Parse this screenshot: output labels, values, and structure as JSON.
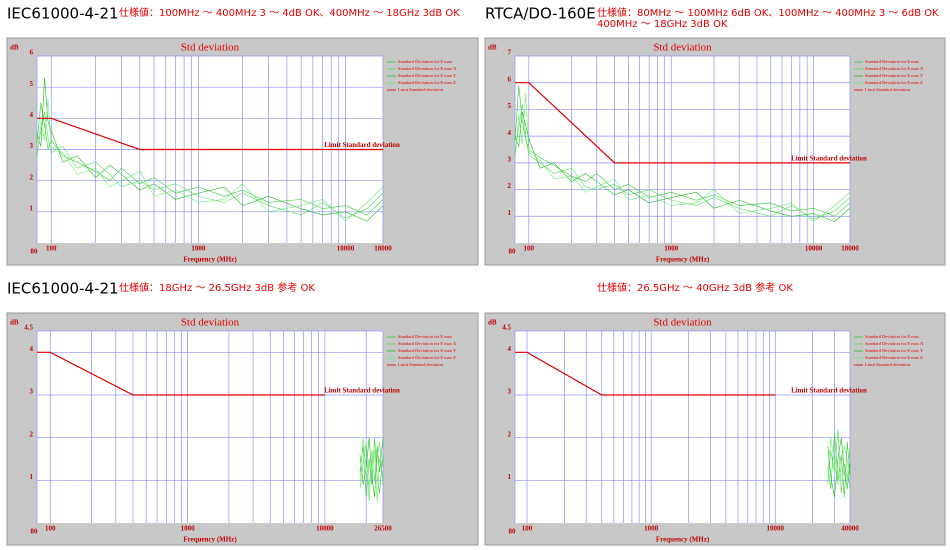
{
  "chart_data": [
    {
      "type": "line",
      "heading": "IEC61000-4-21",
      "spec": [
        "仕様値：100MHz ～ 400MHz 3 ～ 4dB OK、400MHz ～ 18GHz 3dB OK"
      ],
      "title": "Std deviation",
      "x_label": "Frequency (MHz)",
      "y_label": "dB",
      "annotation": "Limit Standard deviation",
      "xscale": "log",
      "xlim": [
        80,
        18000
      ],
      "xticks": [
        80,
        100,
        1000,
        10000,
        18000
      ],
      "xgrid": [
        200,
        300,
        400,
        500,
        600,
        700,
        800,
        900,
        2000,
        3000,
        4000,
        5000,
        6000,
        7000,
        8000,
        9000
      ],
      "ylim": [
        0,
        6
      ],
      "yticks": [
        1,
        2,
        3,
        4,
        5,
        6
      ],
      "grid": true,
      "x": [
        80,
        85,
        90,
        95,
        100,
        120,
        150,
        200,
        250,
        300,
        400,
        500,
        700,
        1000,
        1500,
        2000,
        3000,
        5000,
        7000,
        10000,
        14000,
        18000
      ],
      "series": [
        {
          "name": "Standard Deviation for E max",
          "color": "#33cc33",
          "values": [
            3.2,
            4.5,
            3.8,
            3.0,
            3.3,
            2.8,
            2.6,
            2.3,
            2.0,
            2.4,
            1.9,
            2.1,
            1.6,
            1.8,
            1.5,
            1.7,
            1.3,
            1.4,
            1.1,
            1.2,
            0.9,
            1.4
          ]
        },
        {
          "name": "Standard Deviation for E max X",
          "color": "#55dd55",
          "values": [
            2.9,
            3.6,
            4.2,
            3.4,
            2.9,
            3.1,
            2.4,
            2.6,
            2.2,
            1.8,
            2.0,
            1.7,
            1.9,
            1.5,
            1.3,
            1.6,
            1.2,
            0.9,
            1.3,
            0.8,
            1.1,
            1.6
          ]
        },
        {
          "name": "Standard Deviation for E max Y",
          "color": "#22bb22",
          "values": [
            3.5,
            3.1,
            5.3,
            3.9,
            3.6,
            2.6,
            2.8,
            2.1,
            2.5,
            2.2,
            1.7,
            1.9,
            1.4,
            1.6,
            1.8,
            1.2,
            1.5,
            1.1,
            0.9,
            1.0,
            0.7,
            1.2
          ]
        },
        {
          "name": "Standard Deviation for E max Z",
          "color": "#66ee66",
          "values": [
            2.7,
            3.9,
            3.3,
            4.6,
            3.1,
            2.9,
            2.2,
            2.4,
            1.8,
            2.0,
            2.3,
            1.5,
            1.7,
            1.3,
            1.4,
            1.9,
            1.0,
            1.2,
            1.4,
            0.7,
            1.3,
            1.8
          ]
        },
        {
          "name": "Limit Standard deviation",
          "color": "#e00000",
          "x": [
            80,
            100,
            400,
            18000
          ],
          "values": [
            4,
            4,
            3,
            3
          ]
        }
      ]
    },
    {
      "type": "line",
      "heading": "RTCA/DO-160E",
      "spec": [
        "仕様値：80MHz ～ 100MHz 6dB OK、100MHz ～ 400MHz 3 ～ 6dB OK",
        "400MHz ～ 18GHz 3dB OK"
      ],
      "title": "Std deviation",
      "x_label": "Frequency (MHz)",
      "y_label": "dB",
      "annotation": "Limit Standard deviation",
      "xscale": "log",
      "xlim": [
        80,
        18000
      ],
      "xticks": [
        80,
        100,
        1000,
        10000,
        18000
      ],
      "xgrid": [
        200,
        300,
        400,
        500,
        600,
        700,
        800,
        900,
        2000,
        3000,
        4000,
        5000,
        6000,
        7000,
        8000,
        9000
      ],
      "ylim": [
        0,
        7
      ],
      "yticks": [
        1,
        2,
        3,
        4,
        5,
        6,
        7
      ],
      "grid": true,
      "x": [
        80,
        85,
        90,
        95,
        100,
        120,
        150,
        200,
        250,
        300,
        400,
        500,
        700,
        1000,
        1500,
        2000,
        3000,
        5000,
        7000,
        10000,
        14000,
        18000
      ],
      "series": [
        {
          "name": "Standard Deviation for E max",
          "color": "#33cc33",
          "values": [
            3.8,
            5.9,
            4.6,
            3.9,
            3.5,
            3.2,
            2.9,
            2.5,
            2.3,
            2.6,
            2.0,
            2.2,
            1.7,
            1.9,
            1.6,
            1.8,
            1.4,
            1.5,
            1.2,
            1.3,
            1.0,
            1.5
          ]
        },
        {
          "name": "Standard Deviation for E max X",
          "color": "#55dd55",
          "values": [
            3.4,
            4.3,
            5.2,
            4.0,
            3.3,
            3.0,
            2.6,
            2.8,
            2.1,
            2.0,
            2.2,
            1.8,
            2.0,
            1.6,
            1.4,
            1.7,
            1.3,
            1.0,
            1.4,
            0.9,
            1.2,
            1.7
          ]
        },
        {
          "name": "Standard Deviation for E max Y",
          "color": "#22bb22",
          "values": [
            4.0,
            3.6,
            4.9,
            4.4,
            3.9,
            2.8,
            3.0,
            2.3,
            2.6,
            2.3,
            1.8,
            2.0,
            1.5,
            1.7,
            1.9,
            1.3,
            1.6,
            1.2,
            1.0,
            1.1,
            0.8,
            1.3
          ]
        },
        {
          "name": "Standard Deviation for E max Z",
          "color": "#66ee66",
          "values": [
            3.1,
            4.8,
            3.7,
            5.6,
            3.4,
            3.1,
            2.4,
            2.5,
            1.9,
            2.1,
            2.4,
            1.6,
            1.8,
            1.4,
            1.5,
            2.0,
            1.1,
            1.3,
            1.5,
            0.8,
            1.4,
            1.9
          ]
        },
        {
          "name": "Limit Standard deviation",
          "color": "#e00000",
          "x": [
            80,
            100,
            400,
            18000
          ],
          "values": [
            6,
            6,
            3,
            3
          ]
        }
      ]
    },
    {
      "type": "line",
      "heading": "IEC61000-4-21",
      "spec": [
        "仕様値：18GHz ～ 26.5GHz 3dB 参考 OK"
      ],
      "title": "Std deviation",
      "x_label": "Frequency (MHz)",
      "y_label": "dB",
      "annotation": "Limit Standard deviation",
      "xscale": "log",
      "xlim": [
        80,
        26500
      ],
      "xticks": [
        80,
        100,
        1000,
        10000,
        26500
      ],
      "xgrid": [
        200,
        300,
        400,
        500,
        600,
        700,
        800,
        900,
        2000,
        3000,
        4000,
        5000,
        6000,
        7000,
        8000,
        9000,
        20000
      ],
      "ylim": [
        0,
        4.5
      ],
      "yticks": [
        1,
        2,
        3,
        4,
        4.5
      ],
      "grid": true,
      "x": [
        18000,
        19000,
        20000,
        21000,
        22000,
        23000,
        24000,
        25000,
        26500
      ],
      "series": [
        {
          "name": "Standard Deviation for E max",
          "color": "#33cc33",
          "values": [
            1.2,
            1.8,
            0.6,
            1.5,
            0.9,
            2.0,
            1.1,
            0.7,
            1.6
          ]
        },
        {
          "name": "Standard Deviation for E max X",
          "color": "#55dd55",
          "values": [
            0.8,
            1.4,
            1.9,
            0.5,
            1.7,
            1.0,
            1.5,
            1.9,
            0.9
          ]
        },
        {
          "name": "Standard Deviation for E max Y",
          "color": "#22bb22",
          "values": [
            1.6,
            0.9,
            1.3,
            2.0,
            1.1,
            0.6,
            1.8,
            1.2,
            2.0
          ]
        },
        {
          "name": "Standard Deviation for E max Z",
          "color": "#66ee66",
          "values": [
            1.0,
            2.0,
            1.2,
            0.9,
            1.4,
            1.7,
            0.5,
            1.5,
            1.1
          ]
        },
        {
          "name": "Limit Standard deviation",
          "color": "#e00000",
          "x": [
            80,
            100,
            400,
            10000
          ],
          "values": [
            4,
            4,
            3,
            3
          ]
        }
      ]
    },
    {
      "type": "line",
      "spec": [
        "仕様値：26.5GHz ～ 40GHz 3dB 参考 OK"
      ],
      "title": "Std deviation",
      "x_label": "Frequency (MHz)",
      "y_label": "dB",
      "annotation": "Limit Standard deviation",
      "xscale": "log",
      "xlim": [
        80,
        40000
      ],
      "xticks": [
        80,
        100,
        1000,
        10000,
        40000
      ],
      "xgrid": [
        200,
        300,
        400,
        500,
        600,
        700,
        800,
        900,
        2000,
        3000,
        4000,
        5000,
        6000,
        7000,
        8000,
        9000,
        20000,
        30000
      ],
      "ylim": [
        0,
        4.5
      ],
      "yticks": [
        1,
        2,
        3,
        4,
        4.5
      ],
      "grid": true,
      "x": [
        26500,
        28000,
        30000,
        32000,
        34000,
        36000,
        38000,
        40000
      ],
      "series": [
        {
          "name": "Standard Deviation for E max",
          "color": "#33cc33",
          "values": [
            1.3,
            0.8,
            2.1,
            1.0,
            1.6,
            0.6,
            1.9,
            1.1
          ]
        },
        {
          "name": "Standard Deviation for E max X",
          "color": "#55dd55",
          "values": [
            0.9,
            1.7,
            1.2,
            2.2,
            0.7,
            1.4,
            1.0,
            1.8
          ]
        },
        {
          "name": "Standard Deviation for E max Y",
          "color": "#22bb22",
          "values": [
            1.8,
            1.1,
            0.6,
            1.5,
            2.0,
            1.2,
            0.8,
            1.4
          ]
        },
        {
          "name": "Standard Deviation for E max Z",
          "color": "#66ee66",
          "values": [
            1.1,
            2.0,
            1.4,
            0.9,
            1.3,
            1.8,
            1.5,
            0.7
          ]
        },
        {
          "name": "Limit Standard deviation",
          "color": "#e00000",
          "x": [
            80,
            100,
            400,
            10000
          ],
          "values": [
            4,
            4,
            3,
            3
          ]
        }
      ]
    }
  ]
}
